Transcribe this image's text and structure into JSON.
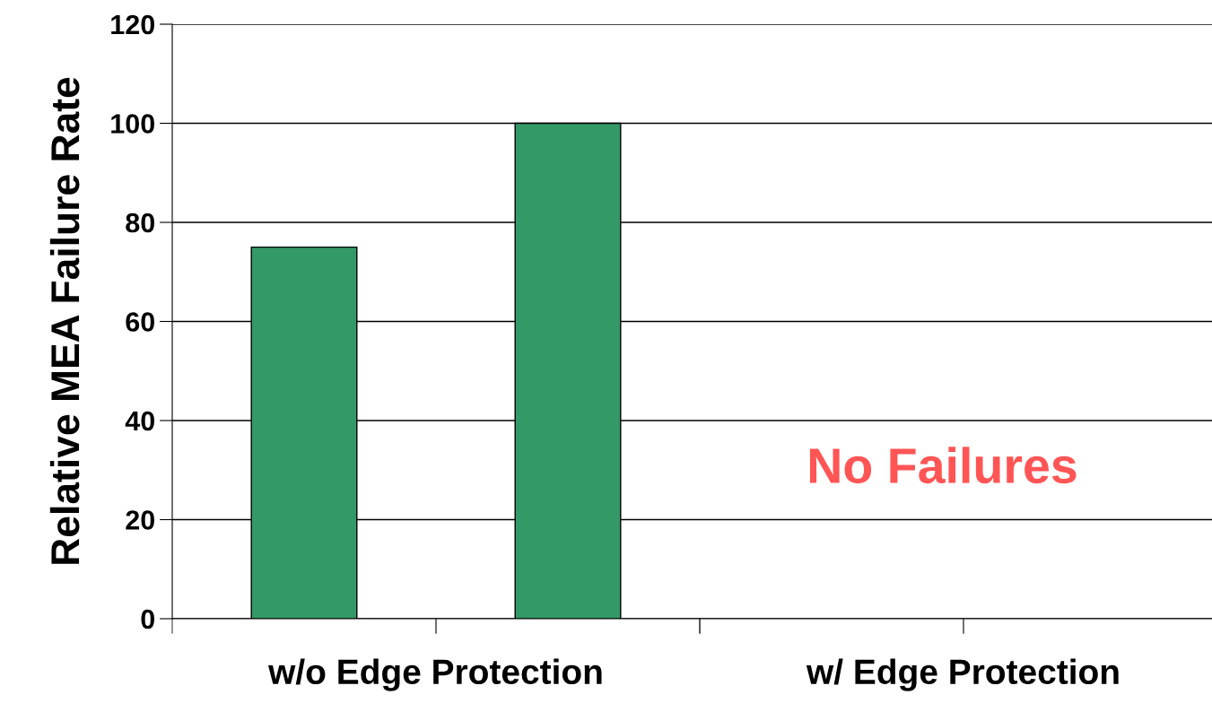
{
  "chart_data": {
    "type": "bar",
    "ylabel": "Relative MEA Failure Rate",
    "categories": [
      "w/o Edge Protection",
      "w/ Edge Protection"
    ],
    "series": [
      {
        "color": "#339966",
        "values": [
          75,
          null
        ]
      },
      {
        "color": "#339966",
        "values": [
          100,
          null
        ]
      }
    ],
    "ylim": [
      0,
      120
    ],
    "yticks": [
      0,
      20,
      40,
      60,
      80,
      100,
      120
    ],
    "grid": "y",
    "legend": false,
    "annotations": [
      "No Failures"
    ]
  }
}
